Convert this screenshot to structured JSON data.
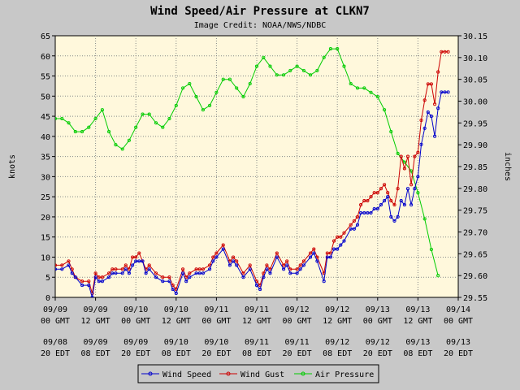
{
  "chart_data": {
    "type": "line",
    "title": "Wind Speed/Air Pressure at CLKN7",
    "subtitle": "Image Credit: NOAA/NWS/NDBC",
    "ylabel": "knots",
    "y2label": "inches",
    "ylim": [
      0,
      65
    ],
    "y2lim": [
      29.55,
      30.15
    ],
    "yticks": [
      "0",
      "5",
      "10",
      "15",
      "20",
      "25",
      "30",
      "35",
      "40",
      "45",
      "50",
      "55",
      "60",
      "65"
    ],
    "y2ticks": [
      "29.55",
      "29.60",
      "29.65",
      "29.70",
      "29.75",
      "29.80",
      "29.85",
      "29.90",
      "29.95",
      "30.00",
      "30.05",
      "30.10",
      "30.15"
    ],
    "x_hours_range": [
      0,
      120
    ],
    "xticks": [
      {
        "line1": "09/09",
        "line2": "00 GMT",
        "line3": "09/08",
        "line4": "20 EDT"
      },
      {
        "line1": "09/09",
        "line2": "12 GMT",
        "line3": "09/09",
        "line4": "08 EDT"
      },
      {
        "line1": "09/10",
        "line2": "00 GMT",
        "line3": "09/09",
        "line4": "20 EDT"
      },
      {
        "line1": "09/10",
        "line2": "12 GMT",
        "line3": "09/10",
        "line4": "08 EDT"
      },
      {
        "line1": "09/11",
        "line2": "00 GMT",
        "line3": "09/10",
        "line4": "20 EDT"
      },
      {
        "line1": "09/11",
        "line2": "12 GMT",
        "line3": "09/11",
        "line4": "08 EDT"
      },
      {
        "line1": "09/12",
        "line2": "00 GMT",
        "line3": "09/11",
        "line4": "20 EDT"
      },
      {
        "line1": "09/12",
        "line2": "12 GMT",
        "line3": "09/12",
        "line4": "08 EDT"
      },
      {
        "line1": "09/13",
        "line2": "00 GMT",
        "line3": "09/12",
        "line4": "20 EDT"
      },
      {
        "line1": "09/13",
        "line2": "12 GMT",
        "line3": "09/13",
        "line4": "08 EDT"
      },
      {
        "line1": "09/14",
        "line2": "00 GMT",
        "line3": "09/13",
        "line4": "20 EDT"
      }
    ],
    "legend": [
      "Wind Speed",
      "Wind Gust",
      "Air Pressure"
    ],
    "colors": {
      "wind_speed": "#0000cc",
      "wind_gust": "#cc0000",
      "air_pressure": "#00cc00",
      "plot_bg": "#fff8dc",
      "page_bg": "#c8c8c8"
    },
    "series": [
      {
        "name": "Wind Speed",
        "axis": "left",
        "x": [
          0,
          2,
          4,
          5,
          6,
          8,
          10,
          11,
          12,
          13,
          14,
          16,
          17,
          18,
          20,
          21,
          22,
          23,
          24,
          25,
          26,
          27,
          28,
          30,
          32,
          34,
          35,
          36,
          38,
          39,
          40,
          42,
          43,
          44,
          46,
          47,
          48,
          50,
          52,
          53,
          54,
          56,
          58,
          60,
          61,
          62,
          63,
          64,
          66,
          68,
          69,
          70,
          72,
          73,
          74,
          76,
          77,
          78,
          80,
          81,
          82,
          83,
          84,
          85,
          86,
          88,
          89,
          90,
          91,
          92,
          93,
          94,
          95,
          96,
          97,
          98,
          99,
          100,
          101,
          102,
          103,
          104,
          105,
          106,
          107,
          108,
          109,
          110,
          111,
          112,
          113,
          114,
          115,
          116,
          117
        ],
        "values": [
          7,
          7,
          8,
          6,
          5,
          3,
          3,
          0,
          5,
          4,
          4,
          5,
          6,
          6,
          6,
          7,
          6,
          8,
          9,
          9,
          9,
          6,
          7,
          5,
          4,
          4,
          2,
          1,
          6,
          4,
          5,
          6,
          6,
          6,
          7,
          9,
          10,
          12,
          8,
          9,
          8,
          5,
          7,
          3,
          2,
          5,
          7,
          6,
          10,
          7,
          8,
          6,
          6,
          7,
          8,
          10,
          11,
          9,
          4,
          10,
          10,
          12,
          12,
          13,
          14,
          17,
          17,
          18,
          21,
          21,
          21,
          21,
          22,
          22,
          23,
          24,
          25,
          20,
          19,
          20,
          24,
          23,
          27,
          23,
          27,
          30,
          38,
          42,
          46,
          45,
          40,
          47,
          51,
          51,
          51
        ],
        "note": "approximate readings"
      },
      {
        "name": "Wind Gust",
        "axis": "left",
        "x": [
          0,
          2,
          4,
          5,
          6,
          8,
          10,
          11,
          12,
          13,
          14,
          16,
          17,
          18,
          20,
          21,
          22,
          23,
          24,
          25,
          26,
          27,
          28,
          30,
          32,
          34,
          35,
          36,
          38,
          39,
          40,
          42,
          43,
          44,
          46,
          47,
          48,
          50,
          52,
          53,
          54,
          56,
          58,
          60,
          61,
          62,
          63,
          64,
          66,
          68,
          69,
          70,
          72,
          73,
          74,
          76,
          77,
          78,
          80,
          81,
          82,
          83,
          84,
          85,
          86,
          88,
          89,
          90,
          91,
          92,
          93,
          94,
          95,
          96,
          97,
          98,
          99,
          100,
          101,
          102,
          103,
          104,
          105,
          106,
          107,
          108,
          109,
          110,
          111,
          112,
          113,
          114,
          115,
          116,
          117
        ],
        "values": [
          8,
          8,
          9,
          7,
          5,
          4,
          4,
          1,
          6,
          5,
          5,
          6,
          7,
          7,
          7,
          8,
          7,
          10,
          10,
          11,
          9,
          7,
          8,
          6,
          5,
          5,
          3,
          2,
          7,
          5,
          6,
          7,
          7,
          7,
          8,
          10,
          11,
          13,
          9,
          10,
          9,
          6,
          8,
          4,
          3,
          6,
          8,
          7,
          11,
          8,
          9,
          7,
          7,
          8,
          9,
          11,
          12,
          10,
          6,
          11,
          11,
          14,
          15,
          15,
          16,
          18,
          19,
          20,
          23,
          24,
          24,
          25,
          26,
          26,
          27,
          28,
          26,
          24,
          23,
          27,
          35,
          32,
          35,
          28,
          35,
          36,
          44,
          49,
          53,
          53,
          48,
          56,
          61,
          61,
          61
        ]
      },
      {
        "name": "Air Pressure",
        "axis": "right",
        "x": [
          0,
          2,
          4,
          6,
          8,
          10,
          12,
          14,
          16,
          18,
          20,
          22,
          24,
          26,
          28,
          30,
          32,
          34,
          36,
          38,
          40,
          42,
          44,
          46,
          48,
          50,
          52,
          54,
          56,
          58,
          60,
          62,
          64,
          66,
          68,
          70,
          72,
          74,
          76,
          78,
          80,
          82,
          84,
          86,
          88,
          90,
          92,
          94,
          96,
          98,
          100,
          102,
          104,
          106,
          108,
          110,
          112,
          114
        ],
        "values": [
          29.96,
          29.96,
          29.95,
          29.93,
          29.93,
          29.94,
          29.96,
          29.98,
          29.93,
          29.9,
          29.89,
          29.91,
          29.94,
          29.97,
          29.97,
          29.95,
          29.94,
          29.96,
          29.99,
          30.03,
          30.04,
          30.01,
          29.98,
          29.99,
          30.02,
          30.05,
          30.05,
          30.03,
          30.01,
          30.04,
          30.08,
          30.1,
          30.08,
          30.06,
          30.06,
          30.07,
          30.08,
          30.07,
          30.06,
          30.07,
          30.1,
          30.12,
          30.12,
          30.08,
          30.04,
          30.03,
          30.03,
          30.02,
          30.01,
          29.98,
          29.93,
          29.88,
          29.86,
          29.84,
          29.79,
          29.73,
          29.66,
          29.6
        ]
      }
    ]
  }
}
